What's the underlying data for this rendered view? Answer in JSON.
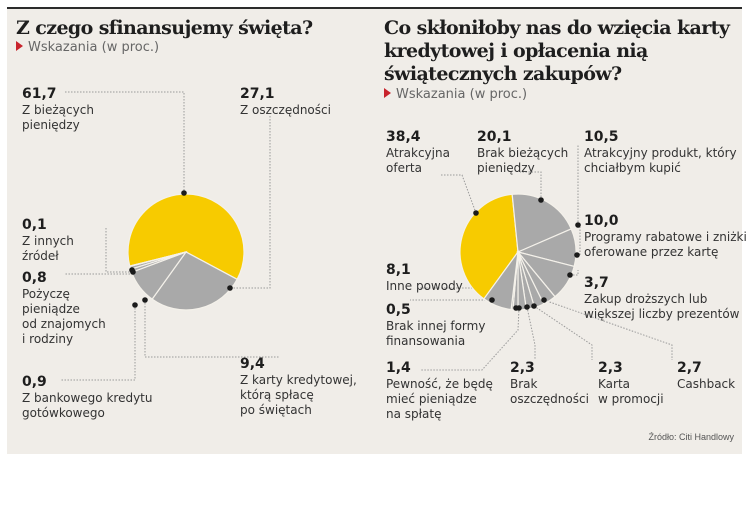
{
  "colors": {
    "accent": "#c8232c",
    "highlight": "#f7cb00",
    "slice": "#a9a9a9",
    "background": "#f0ede8"
  },
  "chart_data": [
    {
      "type": "pie",
      "title": "Z czego sfinansujemy święta?",
      "subtitle": "Wskazania (w proc.)",
      "slices": [
        {
          "label": "Z bieżących pieniędzy",
          "value": 61.7,
          "value_text": "61,7",
          "highlight": true
        },
        {
          "label": "Z oszczędności",
          "value": 27.1,
          "value_text": "27,1"
        },
        {
          "label": "Z karty kredytowej, którą spłacę po świętach",
          "value": 9.4,
          "value_text": "9,4"
        },
        {
          "label": "Z bankowego kredytu gotówkowego",
          "value": 0.9,
          "value_text": "0,9"
        },
        {
          "label": "Pożyczę pieniądze od znajomych i rodziny",
          "value": 0.8,
          "value_text": "0,8"
        },
        {
          "label": "Z innych źródeł",
          "value": 0.1,
          "value_text": "0,1"
        }
      ]
    },
    {
      "type": "pie",
      "title": "Co skłoniłoby nas do wzięcia karty kredytowej i opłacenia nią świątecznych zakupów?",
      "subtitle": "Wskazania (w proc.)",
      "slices": [
        {
          "label": "Atrakcyjna oferta",
          "value": 38.4,
          "value_text": "38,4",
          "highlight": true
        },
        {
          "label": "Brak bieżących pieniędzy",
          "value": 20.1,
          "value_text": "20,1"
        },
        {
          "label": "Atrakcyjny produkt, który chciałbym kupić",
          "value": 10.5,
          "value_text": "10,5"
        },
        {
          "label": "Programy rabatowe i zniżki oferowane przez kartę",
          "value": 10.0,
          "value_text": "10,0"
        },
        {
          "label": "Zakup droższych lub większej liczby prezentów",
          "value": 3.7,
          "value_text": "3,7"
        },
        {
          "label": "Cashback",
          "value": 2.7,
          "value_text": "2,7"
        },
        {
          "label": "Karta w promocji",
          "value": 2.3,
          "value_text": "2,3"
        },
        {
          "label": "Brak oszczędności",
          "value": 2.3,
          "value_text": "2,3"
        },
        {
          "label": "Pewność, że będę mieć pieniądze na spłatę",
          "value": 1.4,
          "value_text": "1,4"
        },
        {
          "label": "Brak innej formy finansowania",
          "value": 0.5,
          "value_text": "0,5"
        },
        {
          "label": "Inne powody",
          "value": 8.1,
          "value_text": "8,1"
        }
      ]
    }
  ],
  "left": {
    "title": "Z czego sfinansujemy święta?",
    "subtitle": "Wskazania (w proc.)",
    "labels": [
      {
        "value": "61,7",
        "text": "Z bieżących\npieniędzy"
      },
      {
        "value": "27,1",
        "text": "Z oszczędności"
      },
      {
        "value": "0,1",
        "text": "Z innych\nźródeł"
      },
      {
        "value": "0,8",
        "text": "Pożyczę\npieniądze\nod znajomych\ni rodziny"
      },
      {
        "value": "0,9",
        "text": "Z bankowego kredytu\ngotówkowego"
      },
      {
        "value": "9,4",
        "text": "Z karty kredytowej,\nktórą spłacę\npo świętach"
      }
    ]
  },
  "right": {
    "title_lines": [
      "Co skłoniłoby nas do wzięcia karty",
      "kredytowej  i opłacenia nią",
      "świątecznych zakupów?"
    ],
    "subtitle": "Wskazania (w proc.)",
    "labels": [
      {
        "value": "38,4",
        "text": "Atrakcyjna\noferta"
      },
      {
        "value": "20,1",
        "text": "Brak bieżących\npieniędzy"
      },
      {
        "value": "10,5",
        "text": "Atrakcyjny produkt, który\nchciałbym kupić"
      },
      {
        "value": "10,0",
        "text": "Programy rabatowe i zniżki\noferowane przez kartę"
      },
      {
        "value": "3,7",
        "text": "Zakup droższych lub\nwiększej liczby prezentów"
      },
      {
        "value": "8,1",
        "text": "Inne powody"
      },
      {
        "value": "0,5",
        "text": "Brak innej formy\nfinansowania"
      },
      {
        "value": "1,4",
        "text": "Pewność, że będę\nmieć pieniądze\nna spłatę"
      },
      {
        "value": "2,3",
        "text": "Brak\noszczędności"
      },
      {
        "value": "2,3",
        "text": "Karta\nw promocji"
      },
      {
        "value": "2,7",
        "text": "Cashback"
      }
    ]
  },
  "source": "Źródło: Citi Handlowy"
}
